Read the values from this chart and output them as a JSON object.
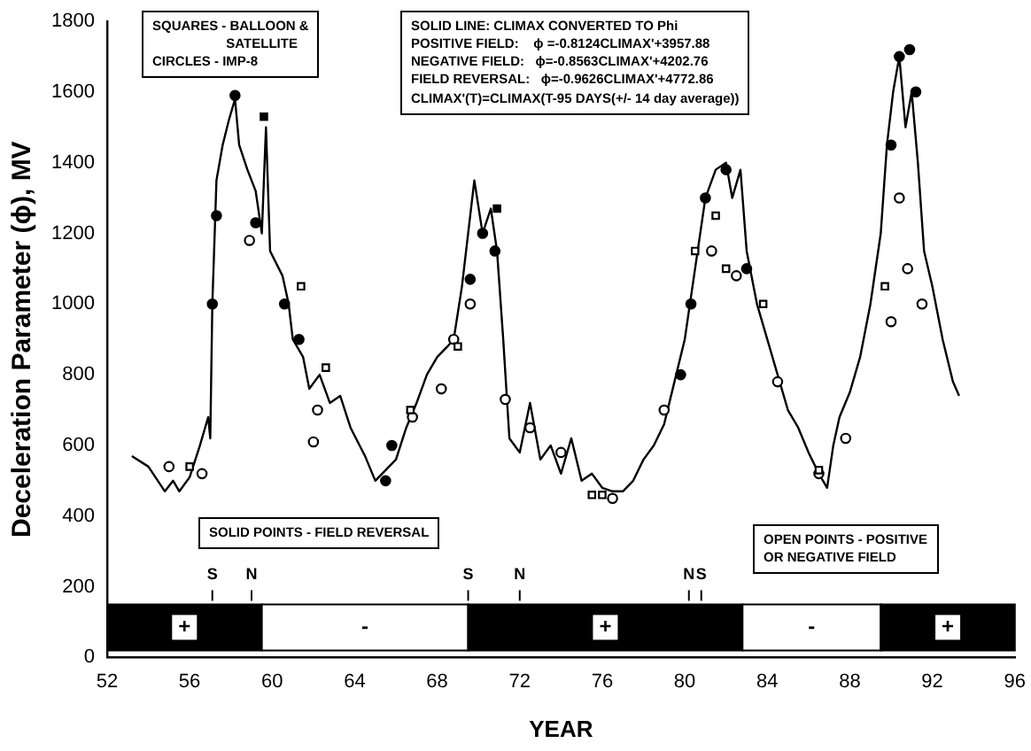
{
  "chart_data": {
    "type": "line",
    "xlabel": "YEAR",
    "ylabel": "Deceleration Parameter (ϕ), MV",
    "xlim": [
      52,
      96
    ],
    "xticks": [
      52,
      56,
      60,
      64,
      68,
      72,
      76,
      80,
      84,
      88,
      92,
      96
    ],
    "ylim": [
      0,
      1800
    ],
    "yticks": [
      0,
      200,
      400,
      600,
      800,
      1000,
      1200,
      1400,
      1600,
      1800
    ],
    "grid": false,
    "legend": false,
    "line_style": "solid",
    "series": [
      {
        "color": "#000000",
        "marker": "none",
        "x": [
          53.2,
          54.0,
          54.8,
          55.2,
          55.5,
          56.0,
          56.5,
          56.9,
          57.0,
          57.1,
          57.3,
          57.6,
          57.9,
          58.2,
          58.4,
          58.8,
          59.2,
          59.5,
          59.7,
          59.9,
          60.5,
          60.8,
          61.0,
          61.5,
          61.8,
          62.3,
          62.8,
          63.3,
          63.8,
          64.5,
          65.0,
          65.5,
          66.0,
          66.5,
          67.0,
          67.5,
          68.0,
          68.5,
          68.8,
          69.2,
          69.5,
          69.8,
          70.2,
          70.6,
          70.9,
          71.2,
          71.5,
          72.0,
          72.5,
          73.0,
          73.5,
          74.0,
          74.5,
          75.0,
          75.5,
          76.0,
          76.5,
          77.0,
          77.5,
          78.0,
          78.5,
          79.0,
          79.5,
          80.0,
          80.5,
          81.0,
          81.5,
          82.0,
          82.3,
          82.7,
          83.0,
          83.5,
          84.0,
          84.5,
          85.0,
          85.5,
          86.0,
          86.5,
          86.9,
          87.2,
          87.5,
          88.0,
          88.5,
          89.0,
          89.5,
          89.8,
          90.1,
          90.4,
          90.7,
          91.0,
          91.3,
          91.6,
          92.0,
          92.5,
          93.0,
          93.3
        ],
        "values": [
          570,
          540,
          470,
          500,
          470,
          510,
          600,
          680,
          620,
          1000,
          1350,
          1450,
          1520,
          1580,
          1450,
          1380,
          1320,
          1200,
          1500,
          1150,
          1080,
          1000,
          900,
          850,
          760,
          800,
          720,
          740,
          650,
          570,
          500,
          530,
          560,
          650,
          720,
          800,
          850,
          880,
          900,
          1050,
          1200,
          1350,
          1200,
          1270,
          1150,
          900,
          620,
          580,
          720,
          560,
          600,
          520,
          620,
          500,
          520,
          480,
          470,
          470,
          500,
          560,
          600,
          660,
          780,
          900,
          1100,
          1300,
          1380,
          1400,
          1300,
          1380,
          1150,
          1000,
          900,
          800,
          700,
          650,
          580,
          520,
          480,
          600,
          680,
          750,
          850,
          1000,
          1200,
          1450,
          1600,
          1700,
          1500,
          1600,
          1400,
          1150,
          1050,
          900,
          780,
          740
        ]
      },
      {
        "type": "scatter",
        "color": "#ffffff",
        "marker": "square",
        "x": [
          56.0,
          61.4,
          62.6,
          66.7,
          69.0,
          75.5,
          76.0,
          80.5,
          81.5,
          82.0,
          83.8,
          86.5,
          89.7
        ],
        "values": [
          540,
          1050,
          820,
          700,
          880,
          460,
          460,
          1150,
          1250,
          1100,
          1000,
          530,
          1050
        ]
      },
      {
        "type": "scatter",
        "color": "#ffffff",
        "marker": "circle",
        "x": [
          55.0,
          56.6,
          58.9,
          62.2,
          62.0,
          66.8,
          68.2,
          68.8,
          69.6,
          71.3,
          72.5,
          74.0,
          76.5,
          79.0,
          81.3,
          82.5,
          84.5,
          86.5,
          87.8,
          90.0,
          90.8,
          91.5,
          90.4
        ],
        "values": [
          540,
          520,
          1180,
          700,
          610,
          680,
          760,
          900,
          1000,
          730,
          650,
          580,
          450,
          700,
          1150,
          1080,
          780,
          520,
          620,
          950,
          1100,
          1000,
          1300
        ]
      },
      {
        "type": "scatter",
        "color": "#000000",
        "marker": "circle",
        "x": [
          57.1,
          57.3,
          58.2,
          59.2,
          60.6,
          61.3,
          65.5,
          65.8,
          69.6,
          70.2,
          70.8,
          79.8,
          80.3,
          81.0,
          82.0,
          83.0,
          90.0,
          90.4,
          90.9,
          91.2
        ],
        "values": [
          1000,
          1250,
          1590,
          1230,
          1000,
          900,
          500,
          600,
          1070,
          1200,
          1150,
          800,
          1000,
          1300,
          1380,
          1100,
          1450,
          1700,
          1720,
          1600
        ]
      },
      {
        "type": "scatter",
        "color": "#000000",
        "marker": "square",
        "x": [
          59.6,
          70.9
        ],
        "values": [
          1530,
          1270
        ]
      }
    ],
    "bands": [
      {
        "axis": "x",
        "from": 52,
        "to": 59.5,
        "label": "+",
        "color": "#000000"
      },
      {
        "axis": "x",
        "from": 59.5,
        "to": 69.5,
        "label": "-",
        "color": "#ffffff"
      },
      {
        "axis": "x",
        "from": 69.5,
        "to": 82.8,
        "label": "+",
        "color": "#000000"
      },
      {
        "axis": "x",
        "from": 82.8,
        "to": 89.5,
        "label": "-",
        "color": "#ffffff"
      },
      {
        "axis": "x",
        "from": 89.5,
        "to": 96,
        "label": "+",
        "color": "#000000"
      }
    ],
    "ref_lines": [
      {
        "axis": "x",
        "value": 57.1,
        "label": "S"
      },
      {
        "axis": "x",
        "value": 59.0,
        "label": "N"
      },
      {
        "axis": "x",
        "value": 69.5,
        "label": "S"
      },
      {
        "axis": "x",
        "value": 72.0,
        "label": "N"
      },
      {
        "axis": "x",
        "value": 80.2,
        "label": "N"
      },
      {
        "axis": "x",
        "value": 80.8,
        "label": "S"
      }
    ],
    "annotations": [
      "SQUARES - BALLOON &\n                    SATELLITE\nCIRCLES - IMP-8",
      "SOLID LINE: CLIMAX CONVERTED TO Phi\nPOSITIVE FIELD:    ϕ =-0.8124CLIMAX'+3957.88\nNEGATIVE FIELD:   ϕ=-0.8563CLIMAX'+4202.76\nFIELD REVERSAL:   ϕ=-0.9626CLIMAX'+4772.86\nCLIMAX'(T)=CLIMAX(T-95 DAYS(+/- 14 day average))",
      "SOLID POINTS - FIELD REVERSAL",
      "OPEN POINTS - POSITIVE\nOR NEGATIVE FIELD"
    ]
  }
}
